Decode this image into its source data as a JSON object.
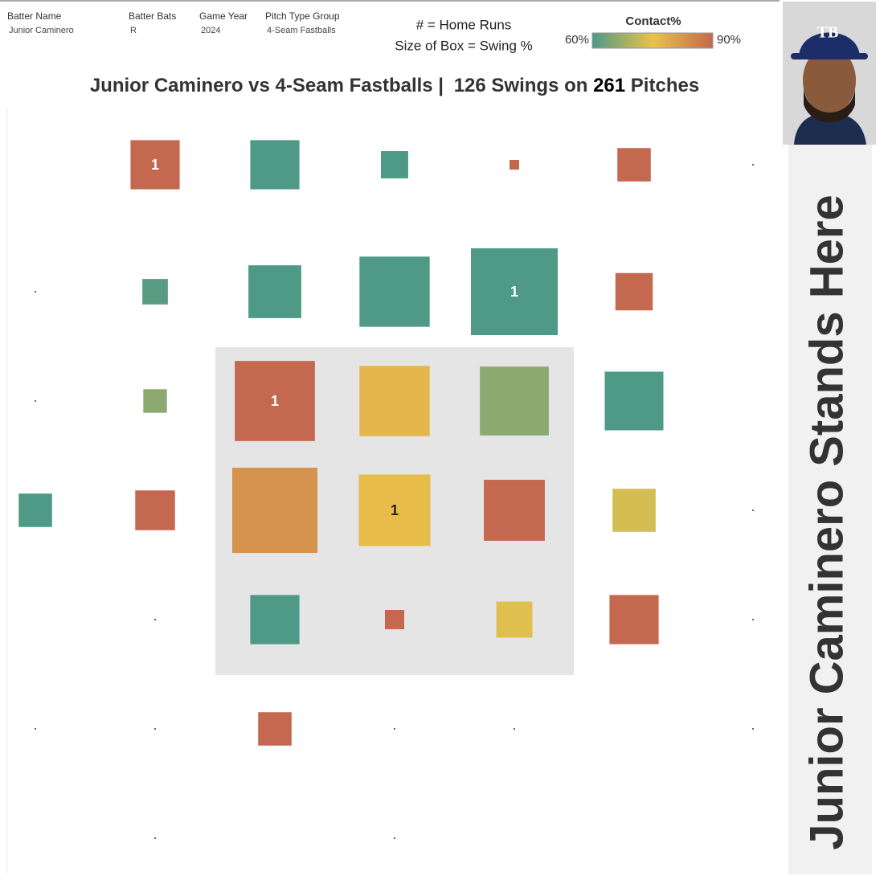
{
  "chart_data": {
    "type": "zone-grid",
    "filters": [
      {
        "label": "Batter Name",
        "value": "Junior Caminero"
      },
      {
        "label": "Batter Bats",
        "value": "R"
      },
      {
        "label": "Game Year",
        "value": "2024"
      },
      {
        "label": "Pitch Type Group",
        "value": "4-Seam Fastballs"
      }
    ],
    "notes": [
      "# = Home Runs",
      "Size of Box = Swing %"
    ],
    "color_legend": {
      "title": "Contact%",
      "range": [
        {
          "value": 60,
          "label": "60%"
        },
        {
          "value": 90,
          "label": "90%"
        }
      ],
      "colors": [
        "#4e9a87",
        "#e9c24a",
        "#c4694f"
      ]
    },
    "title_parts": [
      "Junior Caminero vs 4-Seam Fastballs |",
      "126 Swings on",
      "261",
      "Pitches"
    ],
    "side_label": "Junior Caminero Stands Here",
    "cells": [
      {
        "row": 0,
        "col": 1,
        "swing_pct": 26,
        "contact_pct": 90,
        "home_runs": 1
      },
      {
        "row": 0,
        "col": 2,
        "swing_pct": 26,
        "contact_pct": 60,
        "home_runs": null
      },
      {
        "row": 0,
        "col": 3,
        "swing_pct": 8,
        "contact_pct": 60,
        "home_runs": null
      },
      {
        "row": 0,
        "col": 4,
        "swing_pct": 1,
        "contact_pct": 90,
        "home_runs": null
      },
      {
        "row": 0,
        "col": 5,
        "swing_pct": 12,
        "contact_pct": 90,
        "home_runs": null
      },
      {
        "row": 0,
        "col": 6,
        "swing_pct": 0,
        "contact_pct": null,
        "home_runs": null
      },
      {
        "row": 1,
        "col": 0,
        "swing_pct": 0,
        "contact_pct": null,
        "home_runs": null
      },
      {
        "row": 1,
        "col": 1,
        "swing_pct": 7,
        "contact_pct": 61,
        "home_runs": null
      },
      {
        "row": 1,
        "col": 2,
        "swing_pct": 30,
        "contact_pct": 60,
        "home_runs": null
      },
      {
        "row": 1,
        "col": 3,
        "swing_pct": 53,
        "contact_pct": 60,
        "home_runs": null
      },
      {
        "row": 1,
        "col": 4,
        "swing_pct": 81,
        "contact_pct": 60,
        "home_runs": 1
      },
      {
        "row": 1,
        "col": 5,
        "swing_pct": 15,
        "contact_pct": 90,
        "home_runs": null
      },
      {
        "row": 2,
        "col": 0,
        "swing_pct": 0,
        "contact_pct": null,
        "home_runs": null
      },
      {
        "row": 2,
        "col": 1,
        "swing_pct": 6,
        "contact_pct": 66,
        "home_runs": null
      },
      {
        "row": 2,
        "col": 2,
        "swing_pct": 69,
        "contact_pct": 90,
        "home_runs": 1
      },
      {
        "row": 2,
        "col": 3,
        "swing_pct": 53,
        "contact_pct": 77,
        "home_runs": null
      },
      {
        "row": 2,
        "col": 4,
        "swing_pct": 51,
        "contact_pct": 66,
        "home_runs": null
      },
      {
        "row": 2,
        "col": 5,
        "swing_pct": 37,
        "contact_pct": 60,
        "home_runs": null
      },
      {
        "row": 3,
        "col": 0,
        "swing_pct": 12,
        "contact_pct": 60,
        "home_runs": null
      },
      {
        "row": 3,
        "col": 1,
        "swing_pct": 17,
        "contact_pct": 90,
        "home_runs": null
      },
      {
        "row": 3,
        "col": 2,
        "swing_pct": 78,
        "contact_pct": 83,
        "home_runs": null
      },
      {
        "row": 3,
        "col": 3,
        "swing_pct": 55,
        "contact_pct": 76,
        "home_runs": 1
      },
      {
        "row": 3,
        "col": 4,
        "swing_pct": 40,
        "contact_pct": 90,
        "home_runs": null
      },
      {
        "row": 3,
        "col": 5,
        "swing_pct": 20,
        "contact_pct": 73,
        "home_runs": null
      },
      {
        "row": 3,
        "col": 6,
        "swing_pct": 0,
        "contact_pct": null,
        "home_runs": null
      },
      {
        "row": 4,
        "col": 1,
        "swing_pct": 0,
        "contact_pct": null,
        "home_runs": null
      },
      {
        "row": 4,
        "col": 2,
        "swing_pct": 26,
        "contact_pct": 60,
        "home_runs": null
      },
      {
        "row": 4,
        "col": 3,
        "swing_pct": 4,
        "contact_pct": 90,
        "home_runs": null
      },
      {
        "row": 4,
        "col": 4,
        "swing_pct": 14,
        "contact_pct": 74,
        "home_runs": null
      },
      {
        "row": 4,
        "col": 5,
        "swing_pct": 26,
        "contact_pct": 90,
        "home_runs": null
      },
      {
        "row": 4,
        "col": 6,
        "swing_pct": 0,
        "contact_pct": null,
        "home_runs": null
      },
      {
        "row": 5,
        "col": 0,
        "swing_pct": 0,
        "contact_pct": null,
        "home_runs": null
      },
      {
        "row": 5,
        "col": 1,
        "swing_pct": 0,
        "contact_pct": null,
        "home_runs": null
      },
      {
        "row": 5,
        "col": 2,
        "swing_pct": 12,
        "contact_pct": 90,
        "home_runs": null
      },
      {
        "row": 5,
        "col": 3,
        "swing_pct": 0,
        "contact_pct": null,
        "home_runs": null
      },
      {
        "row": 5,
        "col": 4,
        "swing_pct": 0,
        "contact_pct": null,
        "home_runs": null
      },
      {
        "row": 5,
        "col": 6,
        "swing_pct": 0,
        "contact_pct": null,
        "home_runs": null
      },
      {
        "row": 6,
        "col": 1,
        "swing_pct": 0,
        "contact_pct": null,
        "home_runs": null
      },
      {
        "row": 6,
        "col": 3,
        "swing_pct": 0,
        "contact_pct": null,
        "home_runs": null
      }
    ]
  }
}
